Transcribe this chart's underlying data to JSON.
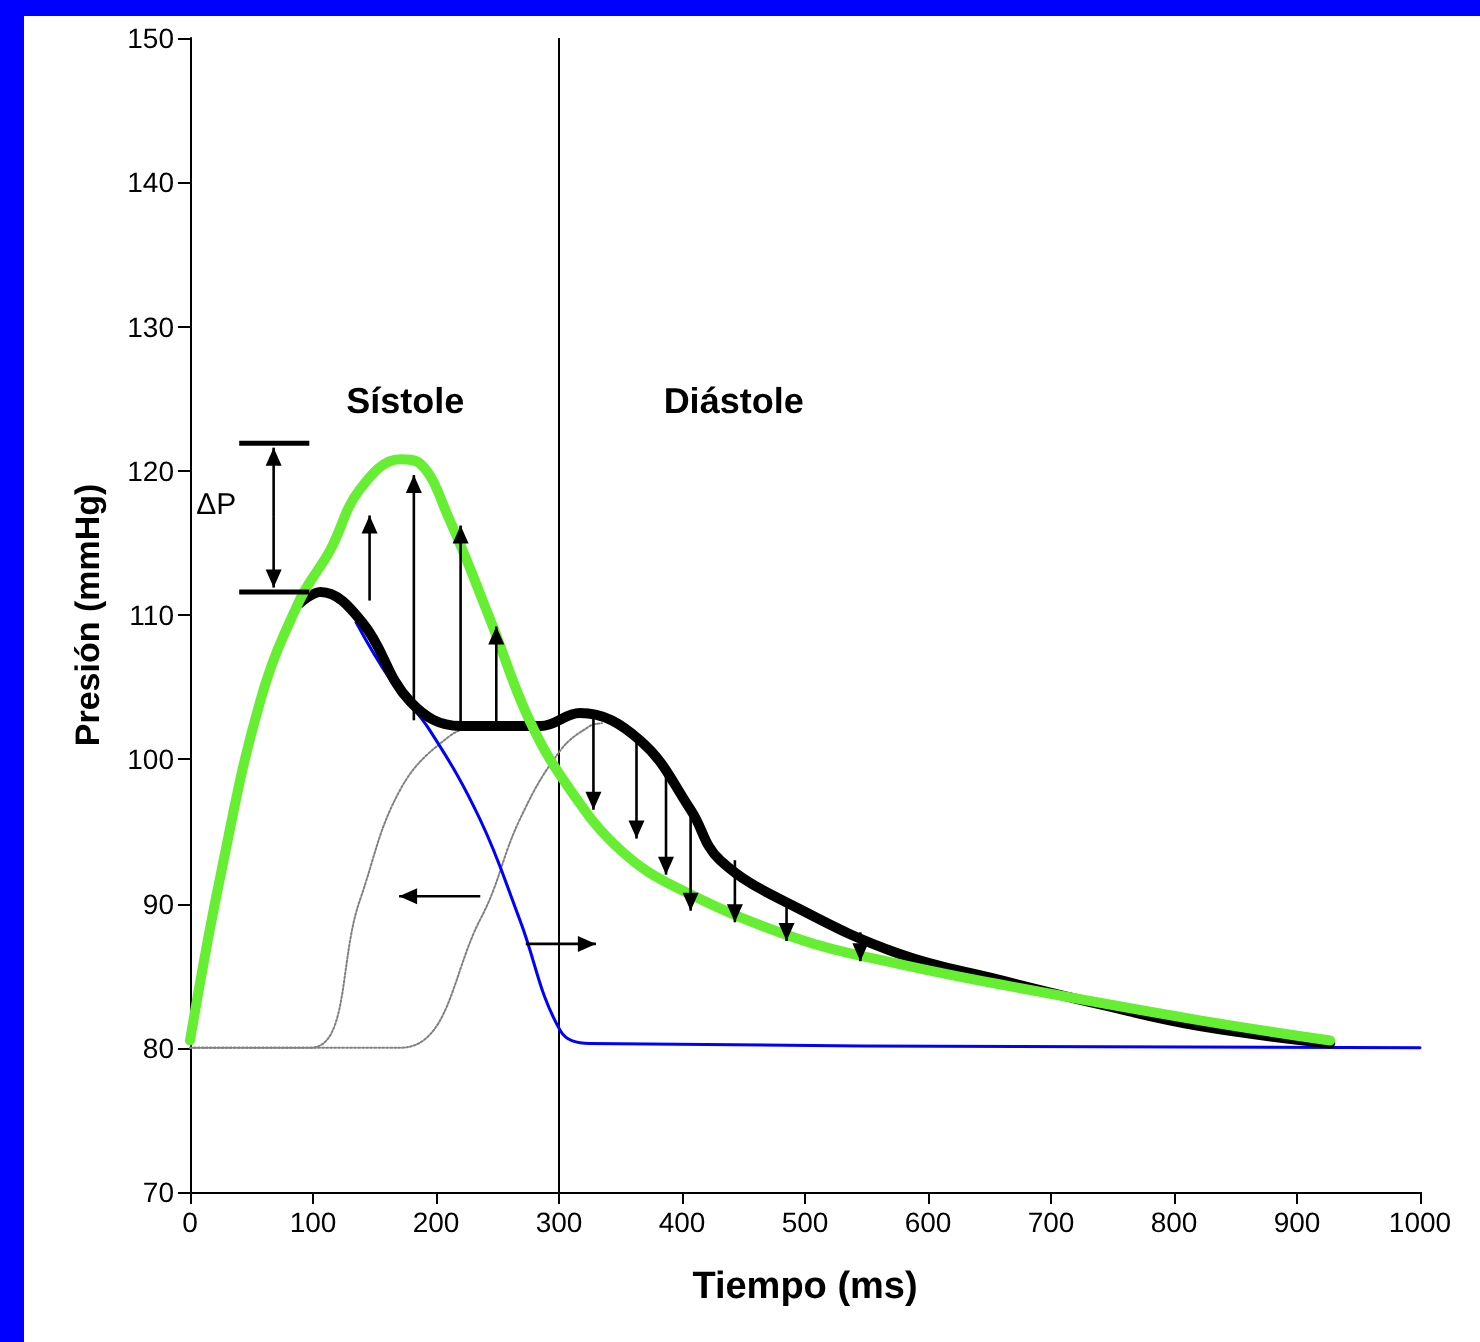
{
  "chart_data": {
    "type": "line",
    "xlabel": "Tiempo (ms)",
    "ylabel": "Presión (mmHg)",
    "annotations": [
      "Sístole",
      "Diástole",
      "ΔP"
    ],
    "xlim": [
      0,
      1000
    ],
    "xticks": [
      0,
      100,
      200,
      300,
      400,
      500,
      600,
      700,
      800,
      900,
      1000
    ],
    "ylim": [
      70,
      150
    ],
    "yticks": [
      70,
      80,
      90,
      100,
      110,
      120,
      130,
      140,
      150
    ],
    "grid": false,
    "marker": "none",
    "ref_lines": [
      {
        "axis": "x",
        "value": 300,
        "color": "#000000"
      }
    ],
    "series": [
      {
        "color": "#66ee33",
        "line_style": "solid",
        "x": [
          0,
          24,
          57,
          89,
          114,
          138,
          171,
          187,
          211,
          244,
          276,
          309,
          350,
          398,
          496,
          577,
          658,
          821,
          927
        ],
        "values": [
          80.5,
          91.6,
          104,
          111,
          114.5,
          118.7,
          120.8,
          120.5,
          116.6,
          109.7,
          102.7,
          97.9,
          93.7,
          91,
          87.5,
          85.8,
          84.4,
          81.9,
          80.5
        ]
      },
      {
        "color": "#000000",
        "line_style": "solid",
        "x": [
          89,
          106,
          140,
          179,
          220,
          285,
          317,
          366,
          407,
          431,
          496,
          577,
          658,
          740,
          821,
          927
        ],
        "values": [
          110.8,
          111.6,
          109.5,
          104,
          102.3,
          102.3,
          103.2,
          101.3,
          96.5,
          93,
          89.6,
          86.5,
          84.7,
          83,
          81.5,
          80.3
        ]
      },
      {
        "color": "#0000ff",
        "line_style": "solid",
        "x": [
          135,
          163,
          195,
          236,
          268,
          301,
          325,
          1000
        ],
        "values": [
          109.5,
          105.5,
          102,
          95.8,
          88.9,
          81.2,
          80.3,
          80
        ]
      },
      {
        "color": "#808080",
        "line_style": "dotted",
        "x": [
          0,
          98,
          138,
          171,
          211,
          236,
          285
        ],
        "values": [
          80,
          80,
          90.2,
          97.9,
          101.6,
          102.2,
          102.2
        ]
      },
      {
        "color": "#808080",
        "line_style": "dotted",
        "x": [
          0,
          171,
          236,
          268,
          301,
          325,
          335
        ],
        "values": [
          80,
          80,
          88.9,
          95.8,
          100.6,
          102.3,
          102.5
        ]
      }
    ]
  }
}
